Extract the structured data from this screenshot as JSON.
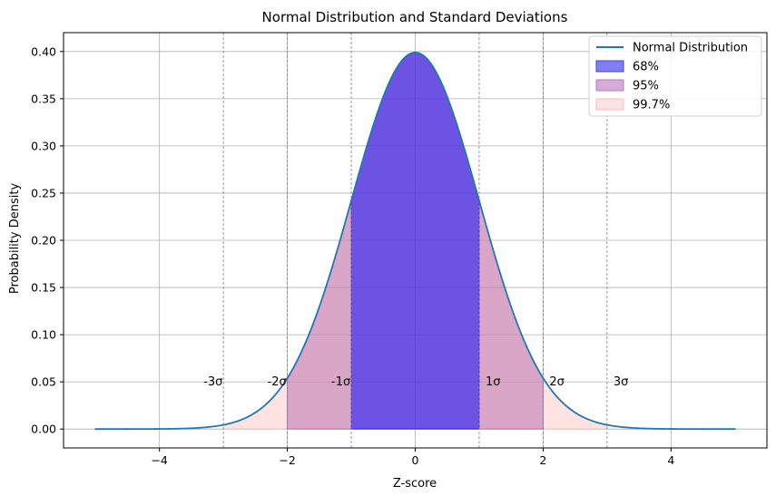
{
  "chart_data": {
    "type": "area",
    "title": "Normal Distribution and Standard Deviations",
    "xlabel": "Z-score",
    "ylabel": "Probability Density",
    "xlim": [
      -5.5,
      5.5
    ],
    "ylim": [
      -0.02,
      0.42
    ],
    "grid": true,
    "legend_position": "top-right",
    "x_ticks": [
      -4,
      -2,
      0,
      2,
      4
    ],
    "x_tick_labels": [
      "−4",
      "−2",
      "0",
      "2",
      "4"
    ],
    "y_ticks": [
      0.0,
      0.05,
      0.1,
      0.15,
      0.2,
      0.25,
      0.3,
      0.35,
      0.4
    ],
    "y_tick_labels": [
      "0.00",
      "0.05",
      "0.10",
      "0.15",
      "0.20",
      "0.25",
      "0.30",
      "0.35",
      "0.40"
    ],
    "curve": {
      "name": "Normal Distribution",
      "color": "#1f77b4",
      "x": [
        -5.0,
        -4.5,
        -4.0,
        -3.5,
        -3.0,
        -2.5,
        -2.0,
        -1.5,
        -1.0,
        -0.5,
        0.0,
        0.5,
        1.0,
        1.5,
        2.0,
        2.5,
        3.0,
        3.5,
        4.0,
        4.5,
        5.0
      ],
      "y": [
        0.0,
        0.0,
        0.0001,
        0.0009,
        0.0044,
        0.0175,
        0.054,
        0.1295,
        0.242,
        0.3521,
        0.3989,
        0.3521,
        0.242,
        0.1295,
        0.054,
        0.0175,
        0.0044,
        0.0009,
        0.0001,
        0.0,
        0.0
      ]
    },
    "regions": [
      {
        "name": "99.7%",
        "from": -3,
        "to": 3,
        "color": "#ffc0c0",
        "opacity": 0.45
      },
      {
        "name": "95%",
        "from": -2,
        "to": 2,
        "color": "#a24a9f",
        "opacity": 0.4
      },
      {
        "name": "68%",
        "from": -1,
        "to": 1,
        "color": "#0000ff",
        "opacity": 0.5
      }
    ],
    "sigma_lines": [
      -3,
      -2,
      -1,
      1,
      2,
      3
    ],
    "annotations": [
      {
        "x": -3,
        "y": 0.05,
        "text": "-3σ"
      },
      {
        "x": -2,
        "y": 0.05,
        "text": "-2σ"
      },
      {
        "x": -1,
        "y": 0.05,
        "text": "-1σ"
      },
      {
        "x": 1,
        "y": 0.05,
        "text": "1σ"
      },
      {
        "x": 2,
        "y": 0.05,
        "text": "2σ"
      },
      {
        "x": 3,
        "y": 0.05,
        "text": "3σ"
      }
    ],
    "legend": [
      {
        "label": "Normal Distribution",
        "kind": "line",
        "color": "#1f77b4"
      },
      {
        "label": "68%",
        "kind": "patch",
        "color": "#7f7ff0",
        "edge": "#4040e0"
      },
      {
        "label": "95%",
        "kind": "patch",
        "color": "#d6acd6",
        "edge": "#b080b8"
      },
      {
        "label": "99.7%",
        "kind": "patch",
        "color": "#ffe3e3",
        "edge": "#ffb8b8"
      }
    ]
  }
}
